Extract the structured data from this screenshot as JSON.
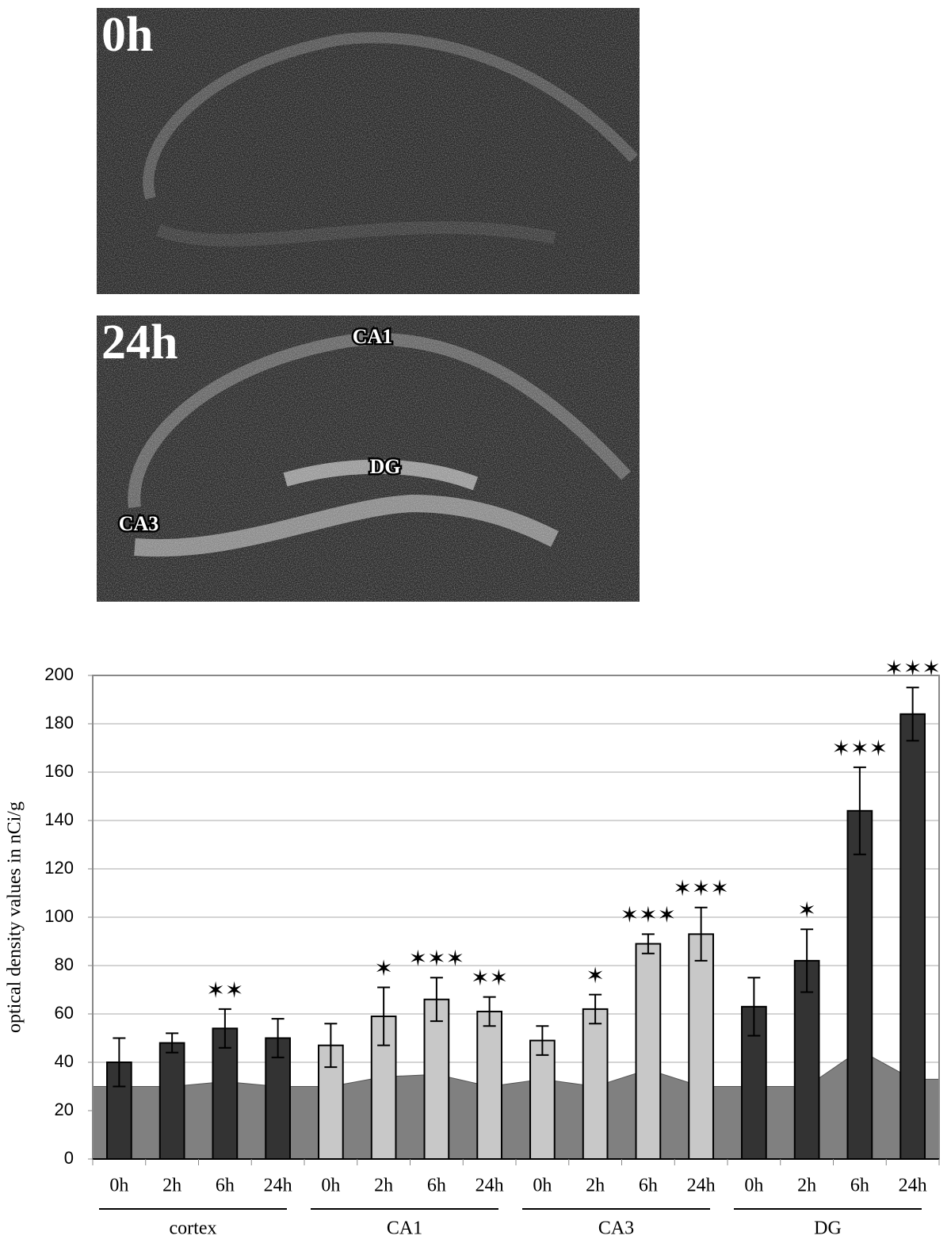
{
  "images": [
    {
      "label": "0h"
    },
    {
      "label": "24h",
      "regions": [
        "CA1",
        "DG",
        "CA3"
      ]
    }
  ],
  "chart_data": {
    "type": "bar",
    "y_label": "optical density values in nCi/g",
    "categories": [
      "0h",
      "2h",
      "6h",
      "24h",
      "0h",
      "2h",
      "6h",
      "24h",
      "0h",
      "2h",
      "6h",
      "24h",
      "0h",
      "2h",
      "6h",
      "24h"
    ],
    "groups": [
      "cortex",
      "CA1",
      "CA3",
      "DG"
    ],
    "series": [
      {
        "type": "area",
        "color": "#808080",
        "values": [
          30,
          30,
          32,
          30,
          30,
          34,
          35,
          30,
          33,
          30,
          37,
          30,
          30,
          30,
          45,
          33
        ]
      },
      {
        "type": "bar",
        "values": [
          40,
          48,
          54,
          50,
          47,
          59,
          66,
          61,
          49,
          62,
          89,
          93,
          63,
          82,
          144,
          184
        ],
        "errors": [
          10,
          4,
          8,
          8,
          9,
          12,
          9,
          6,
          6,
          6,
          4,
          11,
          12,
          13,
          18,
          11
        ],
        "colors": [
          "#333333",
          "#333333",
          "#333333",
          "#333333",
          "#c8c8c8",
          "#c8c8c8",
          "#c8c8c8",
          "#c8c8c8",
          "#c8c8c8",
          "#c8c8c8",
          "#c8c8c8",
          "#c8c8c8",
          "#333333",
          "#333333",
          "#333333",
          "#333333"
        ],
        "annotations": [
          null,
          null,
          "✶✶",
          null,
          null,
          "✶",
          "✶✶✶",
          "✶✶",
          null,
          "✶",
          "✶✶✶",
          "✶✶✶",
          null,
          "✶",
          "✶✶✶",
          "✶✶✶"
        ]
      }
    ],
    "ylim": [
      0,
      200
    ],
    "yticks": [
      0,
      20,
      40,
      60,
      80,
      100,
      120,
      140,
      160,
      180,
      200
    ],
    "grid": true
  }
}
